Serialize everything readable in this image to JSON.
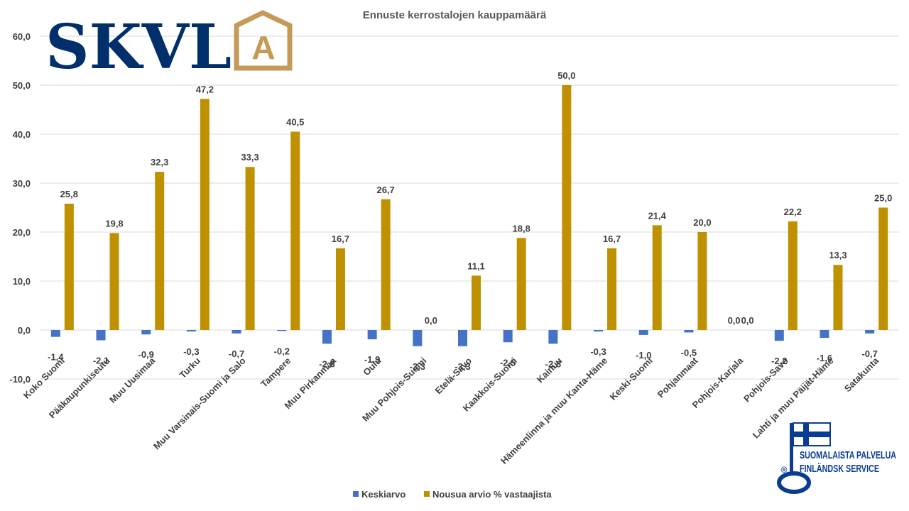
{
  "logo": {
    "text": "SKVL",
    "mark": "A",
    "text_color": "#002f6c",
    "mark_color": "#c59a56"
  },
  "seal": {
    "line1": "SUOMALAISTA PALVELUA",
    "line2": "FINLÄNDSK SERVICE",
    "registered": "®",
    "color": "#0a3d91",
    "icon": "finnish-flag-key-icon"
  },
  "chart_data": {
    "type": "bar",
    "title": "Ennuste kerrostalojen kauppamäärä",
    "categories": [
      "Koko Suomi",
      "Pääkaupunkiseutu",
      "Muu Uusimaa",
      "Turku",
      "Muu Varsinais-Suomi ja Salo",
      "Tampere",
      "Muu Pirkanmaa",
      "Oulu",
      "Muu Pohjois-Suomi",
      "Etelä-Savo",
      "Kaakkois-Suomi",
      "Kainuu",
      "Hämeenlinna ja muu Kanta-Häme",
      "Keski-Suomi",
      "Pohjanmaat",
      "Pohjois-Karjala",
      "Pohjois-Savo",
      "Lahti ja muu Päijät-Häme",
      "Satakunta"
    ],
    "series": [
      {
        "name": "Keskiarvo",
        "color": "#4472c4",
        "values": [
          -1.4,
          -2.1,
          -0.9,
          -0.3,
          -0.7,
          -0.2,
          -2.8,
          -1.9,
          -3.3,
          -3.3,
          -2.5,
          -2.8,
          -0.3,
          -1.0,
          -0.5,
          0.0,
          -2.2,
          -1.6,
          -0.7
        ],
        "labels": [
          "-1,4",
          "-2,1",
          "-0,9",
          "-0,3",
          "-0,7",
          "-0,2",
          "-2,8",
          "-1,9",
          "-3,3",
          "-3,3",
          "-2,5",
          "-2,8",
          "-0,3",
          "-1,0",
          "-0,5",
          "0,0",
          "-2,2",
          "-1,6",
          "-0,7"
        ]
      },
      {
        "name": "Nousua arvio % vastaajista",
        "color": "#bf9000",
        "values": [
          25.8,
          19.8,
          32.3,
          47.2,
          33.3,
          40.5,
          16.7,
          26.7,
          0.0,
          11.1,
          18.8,
          50.0,
          16.7,
          21.4,
          20.0,
          0.0,
          22.2,
          13.3,
          25.0
        ],
        "labels": [
          "25,8",
          "19,8",
          "32,3",
          "47,2",
          "33,3",
          "40,5",
          "16,7",
          "26,7",
          "0,0",
          "11,1",
          "18,8",
          "50,0",
          "16,7",
          "21,4",
          "20,0",
          "0,0",
          "22,2",
          "13,3",
          "25,0"
        ]
      }
    ],
    "ylim": [
      -10,
      60
    ],
    "yticks": [
      -10,
      0,
      10,
      20,
      30,
      40,
      50,
      60
    ],
    "ytick_labels": [
      "-10,0",
      "0,0",
      "10,0",
      "20,0",
      "30,0",
      "40,0",
      "50,0",
      "60,0"
    ],
    "grid": true,
    "legend_position": "bottom"
  }
}
